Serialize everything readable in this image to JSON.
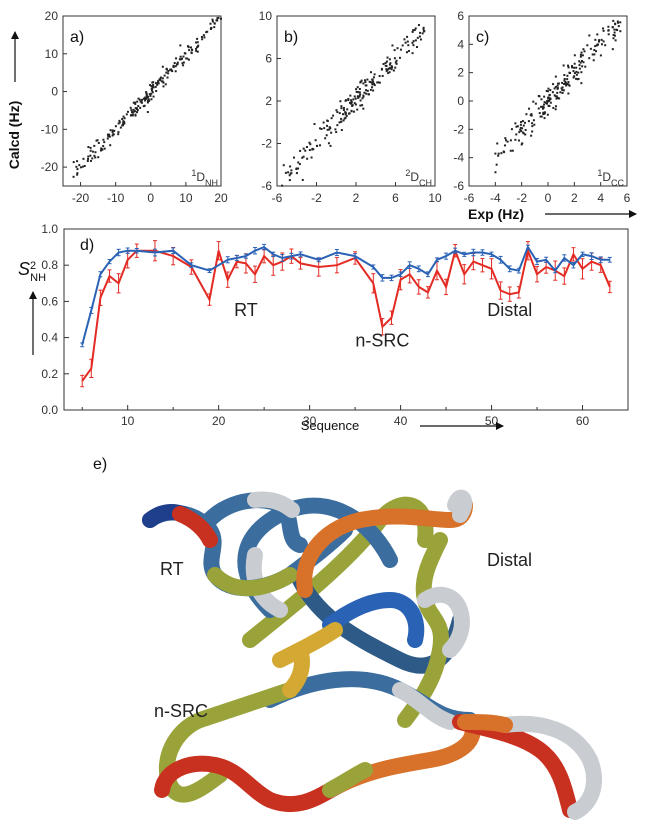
{
  "chart_data": [
    {
      "type": "scatter",
      "panel_label": "a)",
      "coupling": {
        "base": "D",
        "pre": "1",
        "sub": "NH"
      },
      "xlim": [
        -25,
        20
      ],
      "ylim": [
        -25,
        20
      ],
      "xticks": [
        "-20",
        "-10",
        "0",
        "10",
        "20"
      ],
      "yticks": [
        "20",
        "10",
        "0",
        "-10",
        "-20"
      ],
      "xtick_values": [
        -20,
        -10,
        0,
        10,
        20
      ],
      "ytick_values": [
        20,
        10,
        0,
        -10,
        -20
      ],
      "ylabel": "Calcd (Hz)",
      "trend": {
        "slope": 1.0,
        "spread": 1.2,
        "xrange": [
          -22,
          20
        ],
        "n": 230
      }
    },
    {
      "type": "scatter",
      "panel_label": "b)",
      "coupling": {
        "base": "D",
        "pre": "2",
        "sub": "CH"
      },
      "xlim": [
        -6,
        10
      ],
      "ylim": [
        -6,
        10
      ],
      "xticks": [
        "-6",
        "-2",
        "2",
        "6",
        "10"
      ],
      "yticks": [
        "10",
        "6",
        "2",
        "-2",
        "-6"
      ],
      "xtick_values": [
        -6,
        -2,
        2,
        6,
        10
      ],
      "ytick_values": [
        10,
        6,
        2,
        -2,
        -6
      ],
      "trend": {
        "slope": 1.0,
        "spread": 0.7,
        "xrange": [
          -5.5,
          9
        ],
        "n": 220
      }
    },
    {
      "type": "scatter",
      "panel_label": "c)",
      "coupling": {
        "base": "D",
        "pre": "1",
        "sub": "CC"
      },
      "xlim": [
        -6,
        6
      ],
      "ylim": [
        -6,
        6
      ],
      "xticks": [
        "-6",
        "-4",
        "-2",
        "0",
        "2",
        "4",
        "6"
      ],
      "yticks": [
        "6",
        "4",
        "2",
        "0",
        "-2",
        "-4",
        "-6"
      ],
      "xtick_values": [
        -6,
        -4,
        -2,
        0,
        2,
        4,
        6
      ],
      "ytick_values": [
        6,
        4,
        2,
        0,
        -2,
        -4,
        -6
      ],
      "xlabel": "Exp (Hz)",
      "trend": {
        "slope": 1.0,
        "spread": 0.55,
        "xrange": [
          -4,
          5.5
        ],
        "n": 220
      }
    },
    {
      "type": "line",
      "panel_label": "d)",
      "ylabel": {
        "base": "S",
        "sup": "2",
        "sub": "NH"
      },
      "xlabel": "Sequence",
      "xlim": [
        3,
        65
      ],
      "ylim": [
        0,
        1
      ],
      "xticks": [
        "10",
        "20",
        "30",
        "40",
        "50",
        "60"
      ],
      "xtick_values": [
        10,
        20,
        30,
        40,
        50,
        60
      ],
      "yticks": [
        "1.0",
        "0.8",
        "0.6",
        "0.4",
        "0.2",
        "0.0"
      ],
      "ytick_values": [
        1.0,
        0.8,
        0.6,
        0.4,
        0.2,
        0.0
      ],
      "annotations": [
        {
          "text": "RT",
          "x": 23,
          "y": 0.52
        },
        {
          "text": "n-SRC",
          "x": 38,
          "y": 0.35
        },
        {
          "text": "Distal",
          "x": 52,
          "y": 0.52
        }
      ],
      "series": [
        {
          "color": "#2a62b5",
          "x": [
            5,
            6,
            7,
            8,
            9,
            10,
            11,
            13,
            15,
            17,
            19,
            21,
            22,
            23,
            24,
            25,
            26,
            27,
            28,
            29,
            31,
            33,
            35,
            37,
            38,
            39,
            40,
            41,
            42,
            43,
            44,
            45,
            46,
            47,
            48,
            49,
            50,
            51,
            52,
            53,
            54,
            55,
            56,
            57,
            58,
            59,
            60,
            61,
            62,
            63
          ],
          "y": [
            0.36,
            0.55,
            0.75,
            0.82,
            0.87,
            0.88,
            0.88,
            0.87,
            0.88,
            0.8,
            0.77,
            0.83,
            0.84,
            0.85,
            0.88,
            0.9,
            0.86,
            0.84,
            0.85,
            0.86,
            0.83,
            0.87,
            0.85,
            0.79,
            0.73,
            0.73,
            0.75,
            0.8,
            0.78,
            0.75,
            0.83,
            0.85,
            0.88,
            0.86,
            0.87,
            0.87,
            0.86,
            0.83,
            0.78,
            0.77,
            0.9,
            0.82,
            0.83,
            0.77,
            0.84,
            0.8,
            0.86,
            0.85,
            0.83,
            0.83
          ],
          "err": 0.015
        },
        {
          "color": "#e32b24",
          "x": [
            5,
            6,
            7,
            8,
            9,
            10,
            11,
            13,
            15,
            17,
            19,
            20,
            21,
            22,
            23,
            24,
            25,
            26,
            27,
            28,
            29,
            31,
            33,
            35,
            37,
            38,
            39,
            40,
            41,
            42,
            43,
            44,
            45,
            46,
            47,
            48,
            49,
            50,
            51,
            52,
            53,
            54,
            55,
            56,
            57,
            58,
            59,
            60,
            61,
            62,
            63
          ],
          "y": [
            0.16,
            0.23,
            0.62,
            0.74,
            0.7,
            0.83,
            0.88,
            0.88,
            0.85,
            0.79,
            0.61,
            0.88,
            0.72,
            0.82,
            0.81,
            0.75,
            0.85,
            0.8,
            0.82,
            0.85,
            0.81,
            0.79,
            0.8,
            0.84,
            0.7,
            0.46,
            0.51,
            0.72,
            0.75,
            0.68,
            0.65,
            0.77,
            0.68,
            0.88,
            0.75,
            0.82,
            0.8,
            0.78,
            0.66,
            0.64,
            0.65,
            0.88,
            0.75,
            0.79,
            0.77,
            0.74,
            0.86,
            0.78,
            0.82,
            0.8,
            0.68
          ],
          "err": 0.045
        }
      ]
    }
  ],
  "structure": {
    "panel_label": "e)",
    "labels": [
      "RT",
      "Distal",
      "n-SRC"
    ]
  },
  "colors": {
    "scatter_point": "#222222",
    "tube_blue": "#3b6e9f",
    "tube_olive": "#9aa33a",
    "tube_orange": "#d8722a",
    "tube_red": "#c8301f",
    "tube_grey": "#c9cdd2",
    "tube_gold": "#d4a933",
    "tube_navy": "#1f3f8c"
  }
}
